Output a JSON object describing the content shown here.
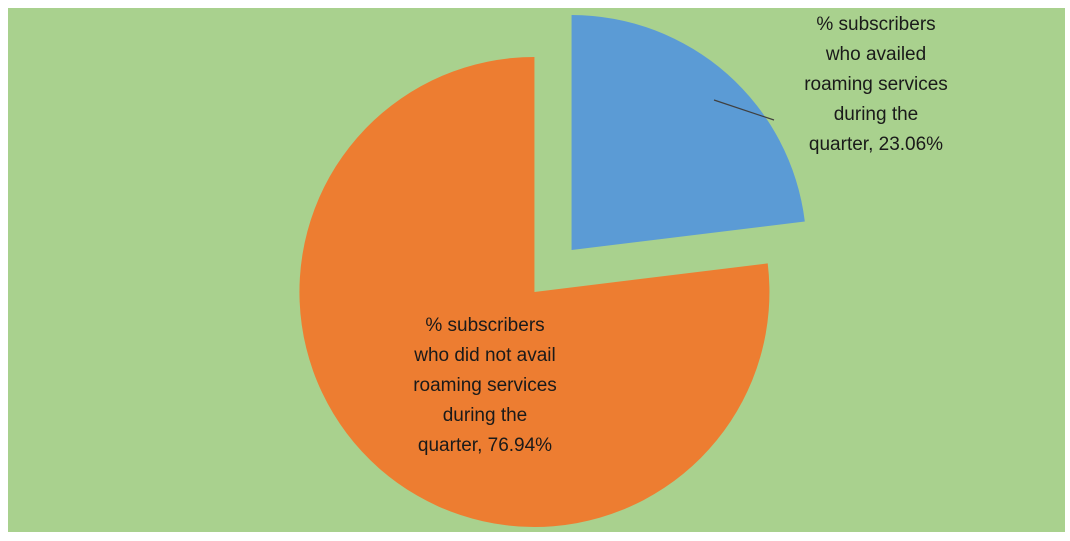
{
  "chart_data": {
    "type": "pie",
    "title": "",
    "exploded": true,
    "start_angle_deg": 0,
    "direction": "clockwise",
    "series": [
      {
        "values": [
          23.06,
          76.94
        ],
        "labels": [
          "% subscribers who availed roaming services during the quarter, 23.06%",
          "% subscribers who did not avail roaming services during the quarter, 76.94%"
        ],
        "label_lines": [
          [
            "% subscribers",
            "who availed",
            "roaming services",
            "during the",
            "quarter, 23.06%"
          ],
          [
            "% subscribers",
            "who did not avail",
            "roaming services",
            "during the",
            "quarter, 76.94%"
          ]
        ],
        "colors": [
          "#5b9bd5",
          "#ed7d31"
        ]
      }
    ],
    "background_color": "#a9d18e",
    "legend": "none"
  }
}
